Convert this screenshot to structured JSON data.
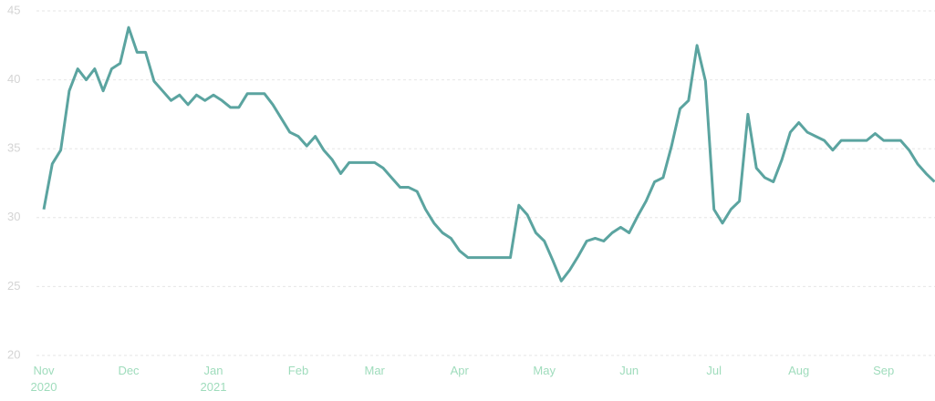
{
  "chart_data": {
    "type": "line",
    "categories": [
      "Nov 2020",
      null,
      null,
      null,
      null,
      null,
      null,
      null,
      null,
      null,
      "Dec",
      null,
      null,
      null,
      null,
      null,
      null,
      null,
      null,
      null,
      "Jan 2021",
      null,
      null,
      null,
      null,
      null,
      null,
      null,
      null,
      null,
      "Feb",
      null,
      null,
      null,
      null,
      null,
      null,
      null,
      null,
      "Mar",
      null,
      null,
      null,
      null,
      null,
      null,
      null,
      null,
      null,
      "Apr",
      null,
      null,
      null,
      null,
      null,
      null,
      null,
      null,
      null,
      "May",
      null,
      null,
      null,
      null,
      null,
      null,
      null,
      null,
      null,
      "Jun",
      null,
      null,
      null,
      null,
      null,
      null,
      null,
      null,
      null,
      "Jul",
      null,
      null,
      null,
      null,
      null,
      null,
      null,
      null,
      null,
      "Aug",
      null,
      null,
      null,
      null,
      null,
      null,
      null,
      null,
      null,
      "Sep",
      null,
      null,
      null,
      null,
      null,
      null
    ],
    "series": [
      {
        "color": "#5ba4a0",
        "values": [
          30.6,
          33.9,
          34.9,
          39.2,
          40.8,
          40,
          40.8,
          39.2,
          40.8,
          41.2,
          43.8,
          42,
          42,
          39.9,
          39.2,
          38.5,
          38.9,
          38.2,
          38.9,
          38.5,
          38.9,
          38.5,
          38,
          38,
          39,
          39,
          39,
          38.2,
          37.2,
          36.2,
          35.9,
          35.2,
          35.9,
          34.9,
          34.2,
          33.2,
          34,
          34,
          34,
          34,
          33.6,
          32.9,
          32.2,
          32.2,
          31.9,
          30.6,
          29.6,
          28.9,
          28.5,
          27.6,
          27.1,
          27.1,
          27.1,
          27.1,
          27.1,
          27.1,
          30.9,
          30.2,
          28.9,
          28.3,
          26.9,
          25.4,
          26.2,
          27.2,
          28.3,
          28.5,
          28.3,
          28.9,
          29.3,
          28.9,
          30.1,
          31.2,
          32.6,
          32.9,
          35.2,
          37.9,
          38.5,
          42.5,
          39.9,
          30.6,
          29.6,
          30.6,
          31.2,
          37.5,
          33.6,
          32.9,
          32.6,
          34.2,
          36.2,
          36.9,
          36.2,
          35.9,
          35.6,
          34.9,
          35.6,
          35.6,
          35.6,
          35.6,
          36.1,
          35.6,
          35.6,
          35.6,
          34.9,
          33.9,
          33.2,
          32.6
        ]
      }
    ],
    "ylim": [
      20,
      45
    ],
    "yticks": [
      20,
      25,
      30,
      35,
      40,
      45
    ],
    "grid": true
  }
}
